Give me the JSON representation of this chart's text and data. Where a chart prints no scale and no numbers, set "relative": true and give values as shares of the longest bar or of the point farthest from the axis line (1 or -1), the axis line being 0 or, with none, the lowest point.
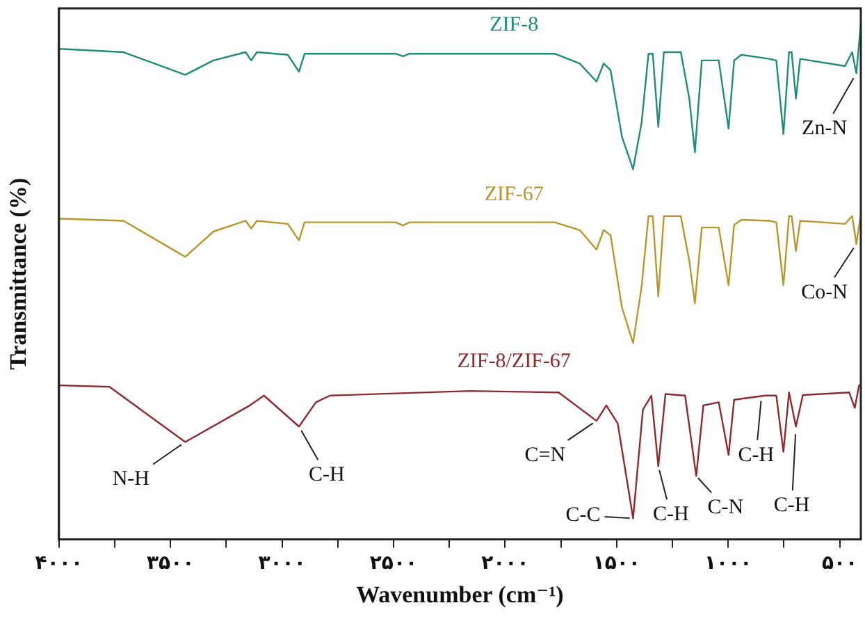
{
  "chart_data": {
    "type": "line",
    "relative": true,
    "marker": "none",
    "line_style": "solid",
    "xlabel": "Wavenumber (cm⁻¹)",
    "ylabel": "Transmittance (%)",
    "xlim": [
      4000,
      405
    ],
    "xticks": [
      {
        "value": 4000,
        "label": "۴۰۰۰"
      },
      {
        "value": 3750,
        "label": null
      },
      {
        "value": 3500,
        "label": "۳۵۰۰"
      },
      {
        "value": 3250,
        "label": null
      },
      {
        "value": 3000,
        "label": "۳۰۰۰"
      },
      {
        "value": 2750,
        "label": null
      },
      {
        "value": 2500,
        "label": "۲۵۰۰"
      },
      {
        "value": 2250,
        "label": null
      },
      {
        "value": 2000,
        "label": "۲۰۰۰"
      },
      {
        "value": 1750,
        "label": null
      },
      {
        "value": 1500,
        "label": "۱۵۰۰"
      },
      {
        "value": 1250,
        "label": null
      },
      {
        "value": 1000,
        "label": "۱۰۰۰"
      },
      {
        "value": 750,
        "label": null
      },
      {
        "value": 500,
        "label": "۵۰۰"
      }
    ],
    "series": [
      {
        "name": "ZIF-8",
        "color": "#1f8c78",
        "x": [
          4000,
          3981,
          3710,
          3434,
          3308,
          3163,
          3138,
          3113,
          2974,
          2924,
          2899,
          2490,
          2458,
          2427,
          1778,
          1665,
          1590,
          1558,
          1527,
          1476,
          1426,
          1388,
          1357,
          1338,
          1313,
          1288,
          1212,
          1174,
          1149,
          1118,
          1042,
          998,
          973,
          941,
          815,
          784,
          752,
          727,
          715,
          696,
          677,
          476,
          444,
          425,
          405
        ],
        "values": [
          0.951,
          0.951,
          0.945,
          0.901,
          0.929,
          0.945,
          0.929,
          0.945,
          0.94,
          0.907,
          0.942,
          0.942,
          0.937,
          0.942,
          0.942,
          0.923,
          0.888,
          0.923,
          0.91,
          0.781,
          0.718,
          0.808,
          0.942,
          0.942,
          0.8,
          0.945,
          0.945,
          0.855,
          0.751,
          0.929,
          0.929,
          0.797,
          0.929,
          0.94,
          0.932,
          0.929,
          0.786,
          0.945,
          0.945,
          0.855,
          0.932,
          0.918,
          0.945,
          0.904,
          1.0
        ]
      },
      {
        "name": "ZIF-67",
        "color": "#b8962e",
        "x": [
          4000,
          3981,
          3710,
          3434,
          3308,
          3163,
          3138,
          3113,
          2974,
          2924,
          2899,
          2490,
          2458,
          2427,
          1778,
          1665,
          1590,
          1558,
          1527,
          1476,
          1426,
          1388,
          1357,
          1338,
          1313,
          1288,
          1212,
          1174,
          1149,
          1118,
          1042,
          998,
          973,
          941,
          815,
          784,
          752,
          727,
          715,
          696,
          677,
          476,
          444,
          425,
          405
        ],
        "values": [
          0.622,
          0.622,
          0.618,
          0.548,
          0.597,
          0.618,
          0.603,
          0.618,
          0.612,
          0.58,
          0.615,
          0.615,
          0.609,
          0.615,
          0.615,
          0.6,
          0.562,
          0.6,
          0.59,
          0.45,
          0.381,
          0.49,
          0.627,
          0.627,
          0.471,
          0.627,
          0.627,
          0.54,
          0.458,
          0.605,
          0.605,
          0.493,
          0.61,
          0.62,
          0.618,
          0.615,
          0.493,
          0.627,
          0.627,
          0.559,
          0.618,
          0.612,
          0.627,
          0.573,
          0.63
        ]
      },
      {
        "name": "ZIF-8/ZIF-67",
        "color": "#8c2a2e",
        "x": [
          4000,
          3773,
          3434,
          3144,
          3081,
          2924,
          2848,
          2785,
          2156,
          1760,
          1590,
          1546,
          1495,
          1426,
          1382,
          1344,
          1313,
          1281,
          1193,
          1143,
          1111,
          1042,
          998,
          973,
          834,
          784,
          752,
          727,
          696,
          665,
          457,
          432,
          413,
          405
        ],
        "values": [
          0.299,
          0.296,
          0.189,
          0.26,
          0.279,
          0.219,
          0.266,
          0.279,
          0.288,
          0.285,
          0.23,
          0.26,
          0.225,
          0.041,
          0.252,
          0.279,
          0.142,
          0.282,
          0.279,
          0.123,
          0.26,
          0.266,
          0.164,
          0.271,
          0.279,
          0.279,
          0.17,
          0.285,
          0.219,
          0.28,
          0.285,
          0.255,
          0.299,
          0.299
        ]
      }
    ],
    "annotations": [
      {
        "text": "N-H",
        "x": 3434,
        "y": 0.189
      },
      {
        "text": "C-H",
        "x": 2924,
        "y": 0.219
      },
      {
        "text": "C=N",
        "x": 1590,
        "y": 0.23
      },
      {
        "text": "C-C",
        "x": 1426,
        "y": 0.041
      },
      {
        "text": "C-H",
        "x": 1313,
        "y": 0.142
      },
      {
        "text": "C-N",
        "x": 1143,
        "y": 0.123
      },
      {
        "text": "C-H",
        "x": 850,
        "y": 0.279
      },
      {
        "text": "C-H",
        "x": 696,
        "y": 0.219
      },
      {
        "text": "Zn-N",
        "x": 425,
        "y": 0.904
      },
      {
        "text": "Co-N",
        "x": 425,
        "y": 0.573
      }
    ]
  }
}
